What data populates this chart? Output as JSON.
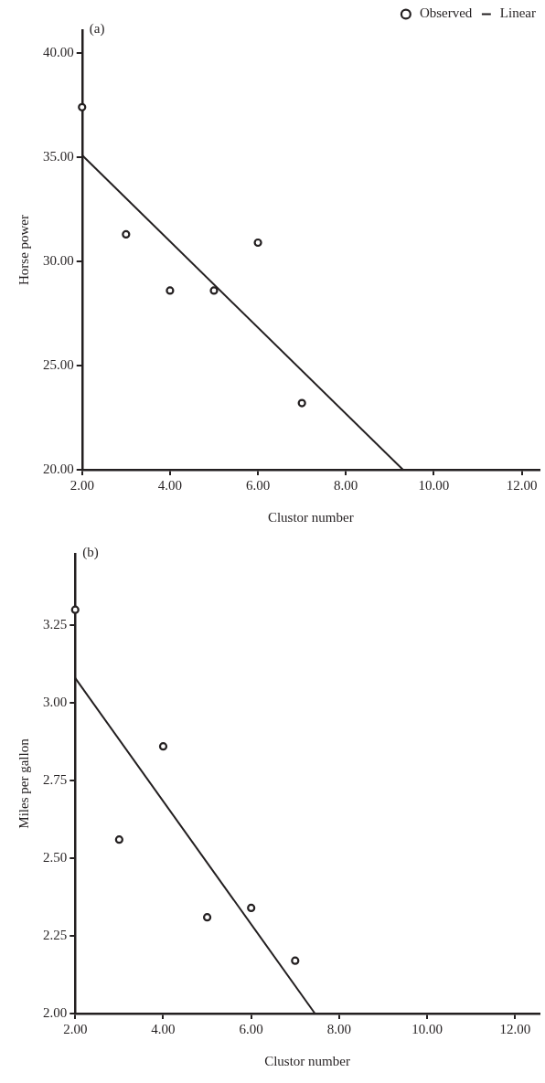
{
  "chart_data": [
    {
      "type": "scatter",
      "annotations": [
        "(a)"
      ],
      "xlabel": "Clustor number",
      "ylabel": "Horse power",
      "xlim": [
        2,
        12.4
      ],
      "ylim": [
        20,
        41.1
      ],
      "xticks": [
        {
          "value": 2,
          "label": "2.00"
        },
        {
          "value": 4,
          "label": "4.00"
        },
        {
          "value": 6,
          "label": "6.00"
        },
        {
          "value": 8,
          "label": "8.00"
        },
        {
          "value": 10,
          "label": "10.00"
        },
        {
          "value": 12,
          "label": "12.00"
        }
      ],
      "yticks": [
        {
          "value": 20,
          "label": "20.00"
        },
        {
          "value": 25,
          "label": "25.00"
        },
        {
          "value": 30,
          "label": "30.00"
        },
        {
          "value": 35,
          "label": "35.00"
        },
        {
          "value": 40,
          "label": "40.00"
        }
      ],
      "series": [
        {
          "name": "Observed",
          "type": "scatter",
          "color": "#231f20",
          "marker": "circle",
          "x": [
            2,
            3,
            4,
            5,
            6,
            7
          ],
          "values": [
            37.4,
            31.3,
            28.6,
            28.6,
            30.9,
            23.2
          ]
        },
        {
          "name": "Linear",
          "type": "line",
          "color": "#231f20",
          "marker": "none",
          "line_style": "solid",
          "x": [
            2,
            9.3
          ],
          "values": [
            35.1,
            20
          ]
        }
      ],
      "legend": "top right",
      "grid": false
    },
    {
      "type": "scatter",
      "annotations": [
        "(b)"
      ],
      "xlabel": "Clustor number",
      "ylabel": "Miles per gallon",
      "xlim": [
        2,
        12.55
      ],
      "ylim": [
        2,
        3.48
      ],
      "xticks": [
        {
          "value": 2,
          "label": "2.00"
        },
        {
          "value": 4,
          "label": "4.00"
        },
        {
          "value": 6,
          "label": "6.00"
        },
        {
          "value": 8,
          "label": "8.00"
        },
        {
          "value": 10,
          "label": "10.00"
        },
        {
          "value": 12,
          "label": "12.00"
        }
      ],
      "yticks": [
        {
          "value": 2,
          "label": "2.00"
        },
        {
          "value": 2.25,
          "label": "2.25"
        },
        {
          "value": 2.5,
          "label": "2.50"
        },
        {
          "value": 2.75,
          "label": "2.75"
        },
        {
          "value": 3,
          "label": "3.00"
        },
        {
          "value": 3.25,
          "label": "3.25"
        }
      ],
      "series": [
        {
          "type": "scatter",
          "color": "#231f20",
          "marker": "circle",
          "x": [
            2,
            3,
            4,
            5,
            6,
            7
          ],
          "values": [
            3.3,
            2.56,
            2.86,
            2.31,
            2.34,
            2.17
          ]
        },
        {
          "type": "line",
          "color": "#231f20",
          "marker": "none",
          "line_style": "solid",
          "x": [
            2,
            7.45
          ],
          "values": [
            3.08,
            2
          ]
        }
      ],
      "legend": false,
      "grid": false
    }
  ]
}
